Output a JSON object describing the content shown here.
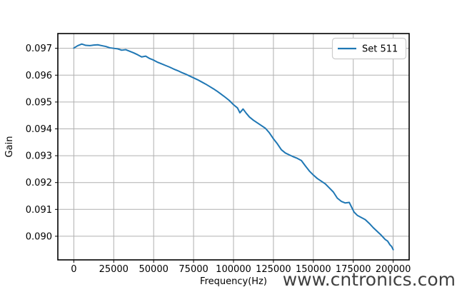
{
  "figure": {
    "background": "#ffffff",
    "grid_color": "#b0b0b0",
    "spine_color": "#000000",
    "watermark": {
      "text": "www.cntronics.com",
      "color": "#9ed29e",
      "opacity": 0.75
    }
  },
  "chart_data": {
    "type": "line",
    "title": "",
    "xlabel": "Frequency(Hz)",
    "ylabel": "Gain",
    "xlim": [
      -10000,
      210000
    ],
    "ylim": [
      0.08912,
      0.09755
    ],
    "grid": true,
    "xticks": [
      0,
      25000,
      50000,
      75000,
      100000,
      125000,
      150000,
      175000,
      200000
    ],
    "xtick_labels": [
      "0",
      "25000",
      "50000",
      "75000",
      "100000",
      "125000",
      "150000",
      "175000",
      "200000"
    ],
    "yticks": [
      0.09,
      0.091,
      0.092,
      0.093,
      0.094,
      0.095,
      0.096,
      0.097
    ],
    "ytick_labels": [
      "0.090",
      "0.091",
      "0.092",
      "0.093",
      "0.094",
      "0.095",
      "0.096",
      "0.097"
    ],
    "legend": {
      "position": "upper right",
      "entries": [
        {
          "label": "Set 511",
          "color": "#1f77b4"
        }
      ]
    },
    "series": [
      {
        "name": "Set 511",
        "color": "#1f77b4",
        "x": [
          0,
          2500,
          5000,
          7500,
          10000,
          12500,
          15000,
          17500,
          20000,
          22500,
          25000,
          27500,
          30000,
          32500,
          35000,
          37500,
          40000,
          42500,
          45000,
          47500,
          50000,
          52500,
          55000,
          57500,
          60000,
          62500,
          65000,
          67500,
          70000,
          72500,
          75000,
          77500,
          80000,
          82500,
          85000,
          87500,
          90000,
          92500,
          95000,
          97500,
          100000,
          102500,
          104000,
          106000,
          108000,
          110000,
          112500,
          115000,
          117500,
          120000,
          122500,
          125000,
          127500,
          130000,
          132500,
          135000,
          137500,
          140000,
          142500,
          145000,
          147500,
          150000,
          152500,
          155000,
          157500,
          160000,
          162500,
          165000,
          167500,
          170000,
          172500,
          174000,
          175500,
          177500,
          180000,
          182500,
          185000,
          187500,
          190000,
          192500,
          195000,
          196500,
          198000,
          199000,
          200000
        ],
        "y": [
          0.09701,
          0.0971,
          0.09716,
          0.09711,
          0.0971,
          0.09712,
          0.09713,
          0.0971,
          0.09707,
          0.09702,
          0.097,
          0.09698,
          0.09693,
          0.09695,
          0.09689,
          0.09683,
          0.09676,
          0.09668,
          0.09671,
          0.09662,
          0.09656,
          0.09648,
          0.09642,
          0.09636,
          0.0963,
          0.09623,
          0.09617,
          0.0961,
          0.09604,
          0.09597,
          0.0959,
          0.09583,
          0.09575,
          0.09567,
          0.09558,
          0.09549,
          0.09539,
          0.09528,
          0.09517,
          0.09505,
          0.0949,
          0.09478,
          0.0946,
          0.09474,
          0.09458,
          0.09444,
          0.09432,
          0.09422,
          0.09412,
          0.09402,
          0.09385,
          0.09363,
          0.09344,
          0.09322,
          0.0931,
          0.09303,
          0.09296,
          0.0929,
          0.09282,
          0.09262,
          0.09243,
          0.09228,
          0.09215,
          0.09205,
          0.09195,
          0.0918,
          0.09165,
          0.09142,
          0.0913,
          0.09124,
          0.09126,
          0.09108,
          0.0909,
          0.09078,
          0.0907,
          0.09062,
          0.09048,
          0.09032,
          0.09018,
          0.09004,
          0.08988,
          0.08982,
          0.08968,
          0.08962,
          0.0895
        ]
      }
    ]
  }
}
